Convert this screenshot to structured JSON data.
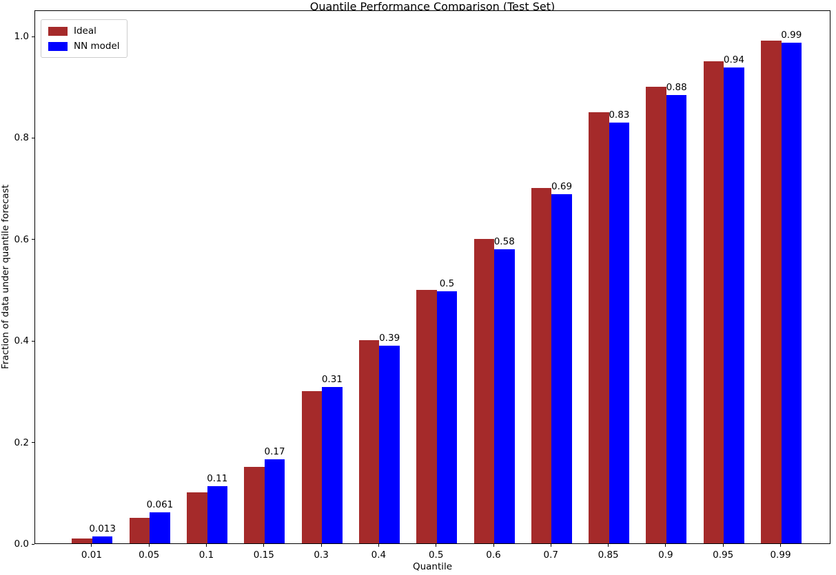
{
  "chart_data": {
    "type": "bar",
    "title": "Quantile Performance Comparison (Test Set)",
    "xlabel": "Quantile",
    "ylabel": "Fraction of data under quantile forecast",
    "categories": [
      "0.01",
      "0.05",
      "0.1",
      "0.15",
      "0.3",
      "0.4",
      "0.5",
      "0.6",
      "0.7",
      "0.85",
      "0.9",
      "0.95",
      "0.99"
    ],
    "series": [
      {
        "name": "Ideal",
        "color": "#a52a2a",
        "values": [
          0.01,
          0.05,
          0.1,
          0.15,
          0.3,
          0.4,
          0.5,
          0.6,
          0.7,
          0.85,
          0.9,
          0.95,
          0.99
        ]
      },
      {
        "name": "NN model",
        "color": "#0000ff",
        "values": [
          0.013,
          0.061,
          0.112,
          0.166,
          0.308,
          0.389,
          0.497,
          0.58,
          0.688,
          0.829,
          0.884,
          0.938,
          0.987
        ],
        "bar_labels": [
          "0.013",
          "0.061",
          "0.11",
          "0.17",
          "0.31",
          "0.39",
          "0.5",
          "0.58",
          "0.69",
          "0.83",
          "0.88",
          "0.94",
          "0.99"
        ]
      }
    ],
    "yticks": [
      "0.0",
      "0.2",
      "0.4",
      "0.6",
      "0.8",
      "1.0"
    ],
    "ytick_values": [
      0,
      0.2,
      0.4,
      0.6,
      0.8,
      1.0
    ],
    "ylim": [
      0,
      1.0516
    ],
    "grid": false,
    "legend_position": "upper left"
  }
}
